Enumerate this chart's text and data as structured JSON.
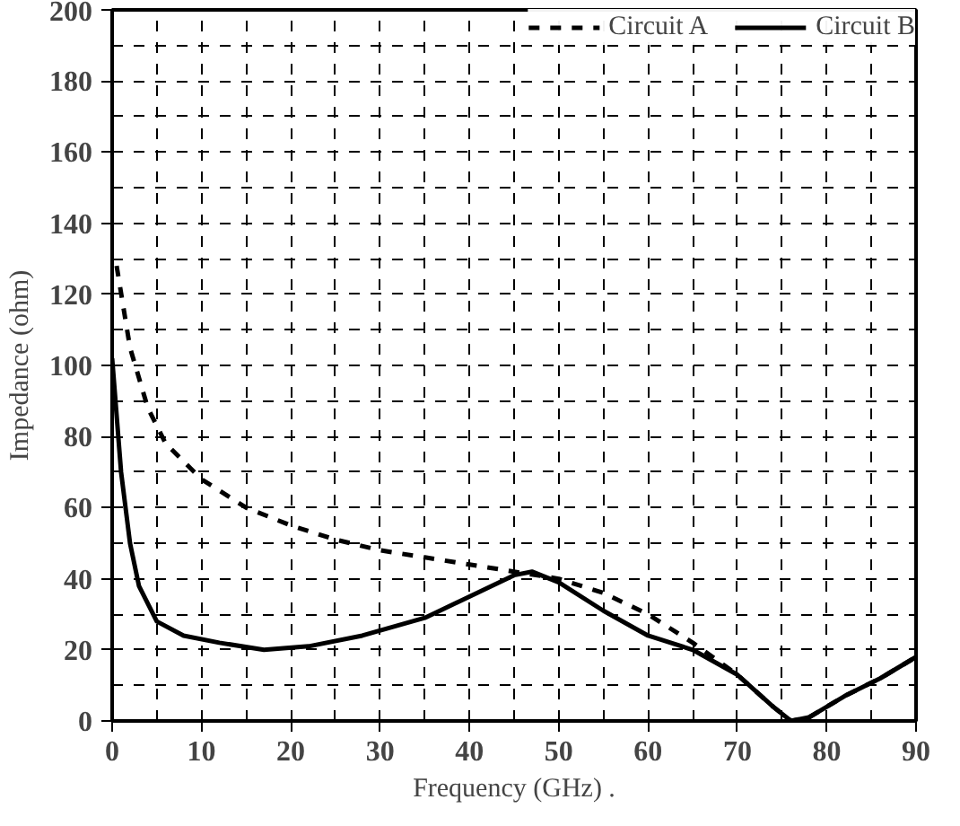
{
  "chart_data": {
    "type": "line",
    "xlabel": "Frequency (GHz) .",
    "ylabel": "Impedance (ohm)",
    "xlim": [
      0,
      90
    ],
    "ylim": [
      0,
      200
    ],
    "xticks": [
      0,
      10,
      20,
      30,
      40,
      50,
      60,
      70,
      80,
      90
    ],
    "yticks": [
      0,
      20,
      40,
      60,
      80,
      100,
      120,
      140,
      160,
      180,
      200
    ],
    "grid": true,
    "legend": "top right",
    "series": [
      {
        "name": "Circuit A",
        "color": "#000000",
        "line_style": "dashed",
        "x": [
          0.5,
          2,
          4,
          6,
          10,
          15,
          20,
          25,
          30,
          35,
          40,
          45,
          50,
          55,
          60,
          65,
          70,
          74,
          76,
          78,
          82,
          86,
          90
        ],
        "values": [
          128,
          105,
          88,
          78,
          68,
          60,
          55,
          51,
          48,
          46,
          44,
          42,
          40,
          36,
          30,
          22,
          13,
          4,
          0,
          1,
          7,
          12,
          18
        ]
      },
      {
        "name": "Circuit B",
        "color": "#000000",
        "line_style": "solid",
        "x": [
          0,
          1,
          2,
          3,
          5,
          8,
          12,
          17,
          22,
          28,
          35,
          40,
          45,
          47,
          50,
          55,
          60,
          65,
          70,
          74,
          76,
          78,
          82,
          86,
          90
        ],
        "values": [
          102,
          70,
          50,
          38,
          28,
          24,
          22,
          20,
          21,
          24,
          29,
          35,
          41,
          42,
          39,
          31,
          24,
          20,
          13,
          4,
          0,
          1,
          7,
          12,
          18
        ]
      }
    ]
  }
}
